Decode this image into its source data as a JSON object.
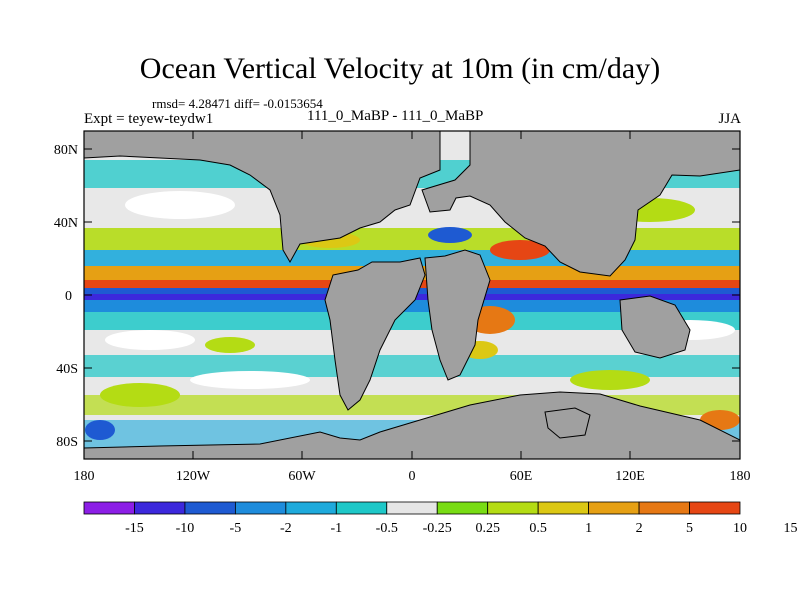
{
  "title": "Ocean Vertical Velocity at 10m (in cm/day)",
  "stats_line": "rmsd= 4.28471 diff= -0.0153654",
  "experiment": "Expt = teyew-teydw1",
  "case_label": "111_0_MaBP - 111_0_MaBP",
  "season": "JJA",
  "map": {
    "lat_labels": [
      "80N",
      "40N",
      "0",
      "40S",
      "80S"
    ],
    "lon_labels": [
      "180",
      "120W",
      "60W",
      "0",
      "60E",
      "120E",
      "180"
    ],
    "land_color": "#a0a0a0"
  },
  "colorbar": {
    "colors": [
      "#8c1ee6",
      "#3c28dc",
      "#1e5ad2",
      "#1e8cdc",
      "#1eaadc",
      "#1ec8c8",
      "#e6e6e6",
      "#78dc14",
      "#b4dc14",
      "#dcc814",
      "#e6a014",
      "#e67814",
      "#e64614"
    ],
    "labels": [
      "-15",
      "-10",
      "-5",
      "-2",
      "-1",
      "-0.5",
      "-0.25",
      "0.25",
      "0.5",
      "1",
      "2",
      "5",
      "10",
      "15"
    ]
  }
}
